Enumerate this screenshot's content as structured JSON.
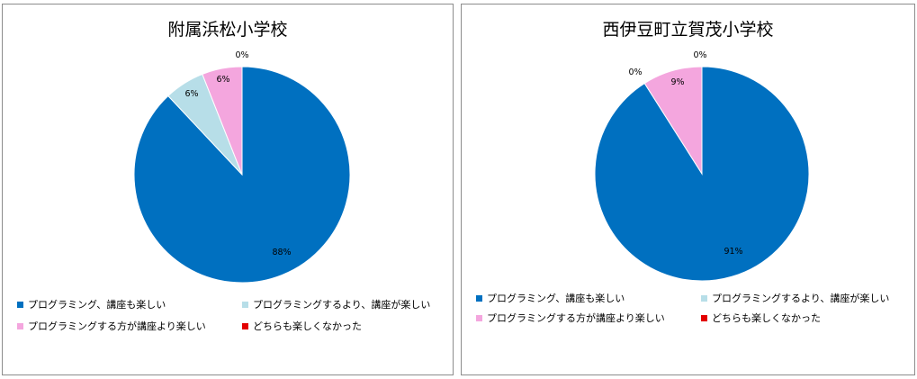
{
  "chart_data": [
    {
      "type": "pie",
      "title": "附属浜松小学校",
      "categories": [
        "プログラミング、講座も楽しい",
        "プログラミングするより、講座が楽しい",
        "プログラミングする方が講座より楽しい",
        "どちらも楽しくなかった"
      ],
      "values": [
        88,
        6,
        6,
        0
      ],
      "labels": [
        "88%",
        "6%",
        "6%",
        "0%"
      ],
      "colors": [
        "#0070c0",
        "#b7dee8",
        "#f4a6de",
        "#e30000"
      ],
      "legend": "bottom"
    },
    {
      "type": "pie",
      "title": "西伊豆町立賀茂小学校",
      "categories": [
        "プログラミング、講座も楽しい",
        "プログラミングするより、講座が楽しい",
        "プログラミングする方が講座より楽しい",
        "どちらも楽しくなかった"
      ],
      "values": [
        91,
        0,
        9,
        0
      ],
      "labels": [
        "91%",
        "0%",
        "9%",
        "0%"
      ],
      "colors": [
        "#0070c0",
        "#b7dee8",
        "#f4a6de",
        "#e30000"
      ],
      "legend": "bottom"
    }
  ]
}
